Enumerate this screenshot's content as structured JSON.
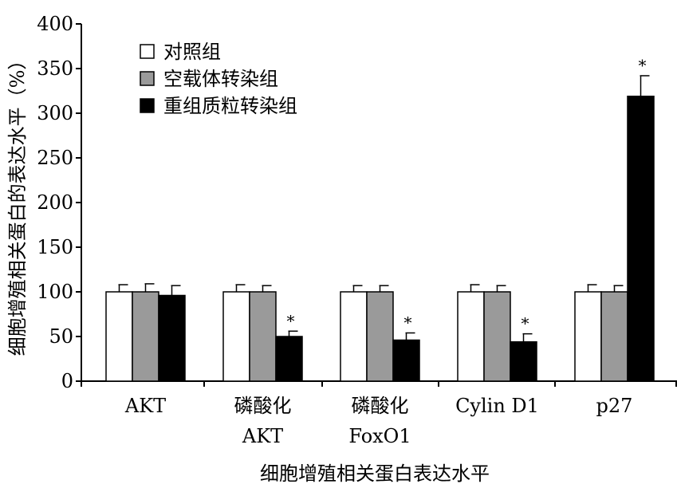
{
  "chart_data": {
    "type": "bar",
    "xlabel": "细胞增殖相关蛋白表达水平",
    "ylabel": "细胞增殖相关蛋白的表达水平（%）",
    "ylim": [
      0,
      400
    ],
    "yticks": [
      0,
      50,
      100,
      150,
      200,
      250,
      300,
      350,
      400
    ],
    "grid": false,
    "legend_position": "top-left",
    "categories": [
      [
        "AKT"
      ],
      [
        "磷酸化",
        "AKT"
      ],
      [
        "磷酸化",
        "FoxO1"
      ],
      [
        "Cylin D1"
      ],
      [
        "p27"
      ]
    ],
    "series": [
      {
        "name": "对照组",
        "color": "#ffffff",
        "values": [
          100,
          100,
          100,
          100,
          100
        ],
        "errors": [
          8,
          8,
          7,
          8,
          8
        ],
        "significant": [
          false,
          false,
          false,
          false,
          false
        ]
      },
      {
        "name": "空载体转染组",
        "color": "#9a9a9a",
        "values": [
          100,
          100,
          100,
          100,
          100
        ],
        "errors": [
          9,
          7,
          7,
          7,
          7
        ],
        "significant": [
          false,
          false,
          false,
          false,
          false
        ]
      },
      {
        "name": "重组质粒转染组",
        "color": "#000000",
        "values": [
          96,
          50,
          46,
          44,
          319
        ],
        "errors": [
          11,
          6,
          8,
          9,
          23
        ],
        "significant": [
          false,
          true,
          true,
          true,
          true
        ]
      }
    ],
    "significance_marker": "*"
  }
}
